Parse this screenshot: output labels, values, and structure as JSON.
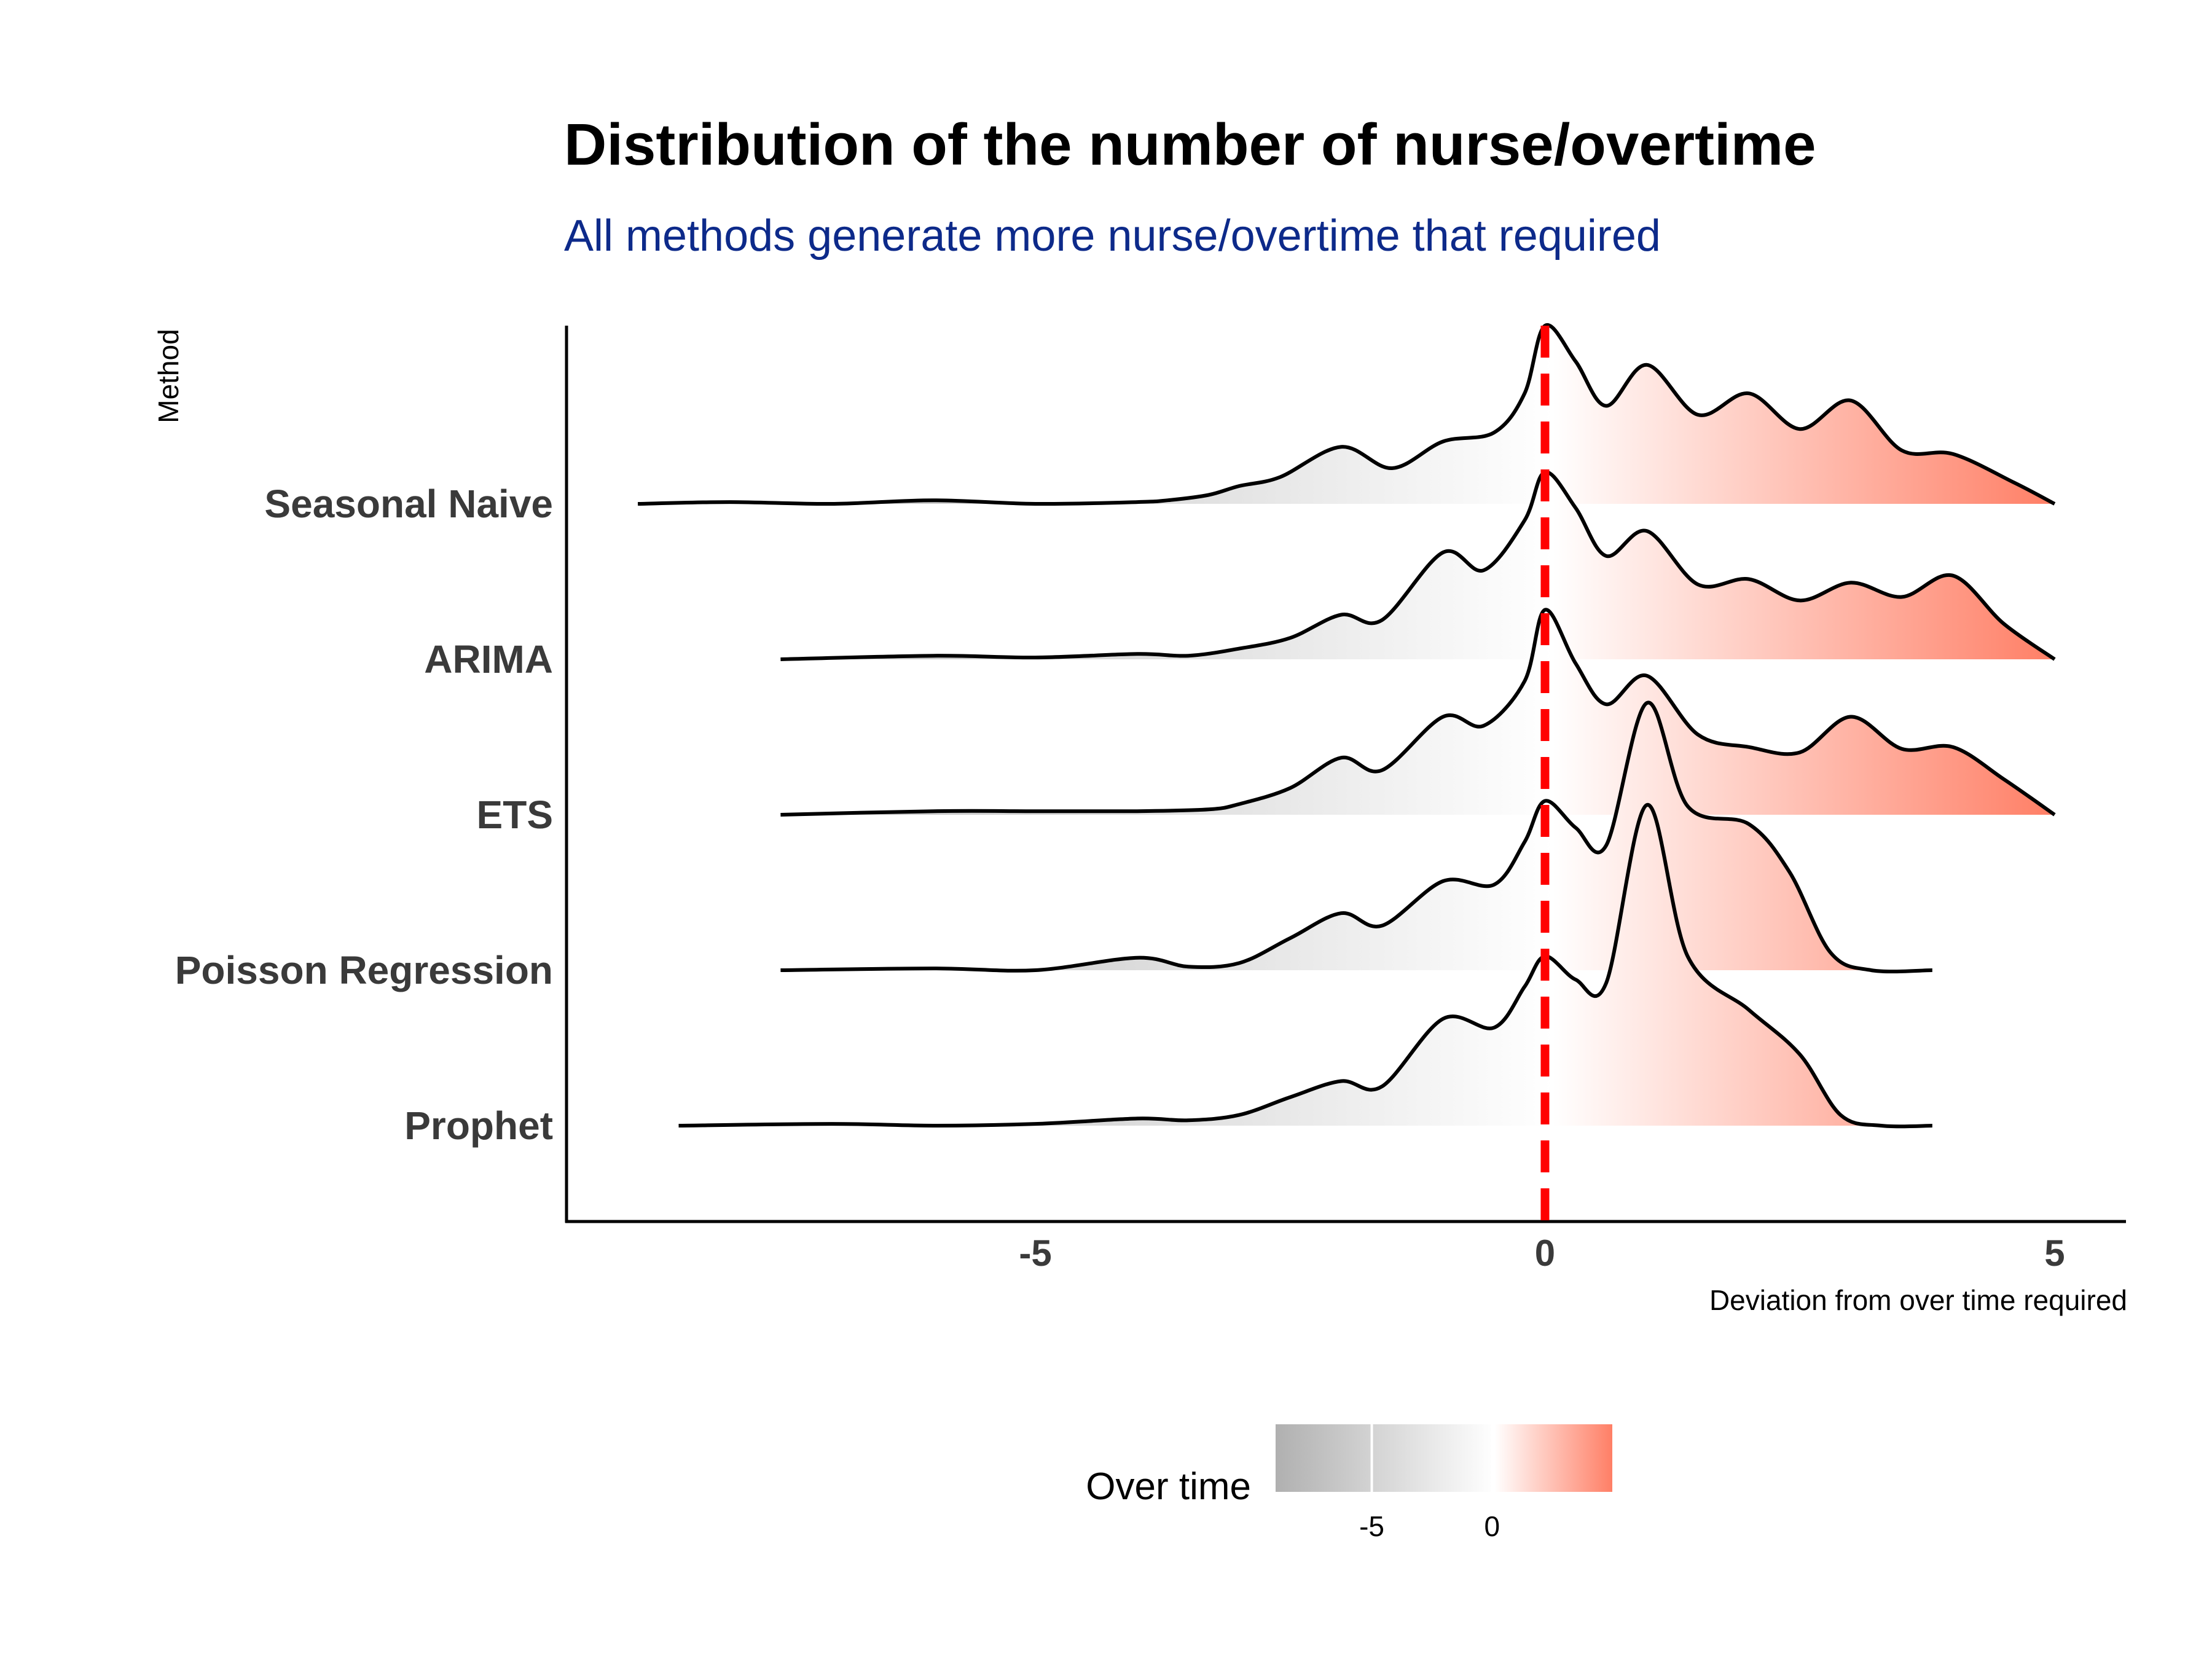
{
  "chart_data": {
    "type": "ridgeline",
    "title": "Distribution of the number of nurse/overtime",
    "subtitle": "All methods generate more nurse/overtime that required",
    "xlabel": "Deviation from over time required",
    "ylabel": "Method",
    "xlim": [
      -9.6,
      5.7
    ],
    "x_ticks": [
      "-5",
      "0",
      "5"
    ],
    "x_tick_values": [
      -5,
      0,
      5
    ],
    "reference_line": {
      "x": 0,
      "style": "dashed",
      "color": "#ff0000"
    },
    "colors": {
      "negative_end": "#b0b0b0",
      "zero": "#ffffff",
      "positive_end": "#ff7f66",
      "outline": "#000000",
      "subtitle": "#0d2a8a"
    },
    "legend": {
      "title": "Over time",
      "placement": "bottom",
      "ticks": [
        "-5",
        "0"
      ],
      "tick_values": [
        -5,
        0
      ],
      "range": [
        -9,
        5
      ]
    },
    "series": [
      {
        "name": "Seasonal Naive",
        "density": [
          [
            -8.9,
            0.0
          ],
          [
            -8,
            0.01
          ],
          [
            -7,
            0.0
          ],
          [
            -6,
            0.02
          ],
          [
            -5,
            0.0
          ],
          [
            -4,
            0.01
          ],
          [
            -3.7,
            0.02
          ],
          [
            -3.3,
            0.05
          ],
          [
            -3,
            0.1
          ],
          [
            -2.6,
            0.15
          ],
          [
            -2,
            0.32
          ],
          [
            -1.5,
            0.2
          ],
          [
            -1,
            0.35
          ],
          [
            -0.5,
            0.4
          ],
          [
            -0.2,
            0.62
          ],
          [
            0,
            1.0
          ],
          [
            0.3,
            0.8
          ],
          [
            0.6,
            0.55
          ],
          [
            1,
            0.78
          ],
          [
            1.5,
            0.5
          ],
          [
            2,
            0.62
          ],
          [
            2.5,
            0.42
          ],
          [
            3,
            0.58
          ],
          [
            3.5,
            0.3
          ],
          [
            4,
            0.28
          ],
          [
            4.6,
            0.12
          ],
          [
            5,
            0.0
          ]
        ]
      },
      {
        "name": "ARIMA",
        "density": [
          [
            -7.5,
            0.0
          ],
          [
            -6,
            0.02
          ],
          [
            -5,
            0.01
          ],
          [
            -4,
            0.03
          ],
          [
            -3.5,
            0.02
          ],
          [
            -3,
            0.06
          ],
          [
            -2.5,
            0.12
          ],
          [
            -2,
            0.25
          ],
          [
            -1.6,
            0.22
          ],
          [
            -1,
            0.6
          ],
          [
            -0.6,
            0.5
          ],
          [
            -0.2,
            0.78
          ],
          [
            0,
            1.05
          ],
          [
            0.3,
            0.85
          ],
          [
            0.6,
            0.58
          ],
          [
            1,
            0.72
          ],
          [
            1.5,
            0.42
          ],
          [
            2,
            0.45
          ],
          [
            2.5,
            0.33
          ],
          [
            3,
            0.43
          ],
          [
            3.5,
            0.35
          ],
          [
            4,
            0.47
          ],
          [
            4.5,
            0.2
          ],
          [
            5,
            0.0
          ]
        ]
      },
      {
        "name": "ETS",
        "density": [
          [
            -7.5,
            0.0
          ],
          [
            -6,
            0.02
          ],
          [
            -5,
            0.02
          ],
          [
            -4,
            0.02
          ],
          [
            -3.3,
            0.03
          ],
          [
            -3,
            0.06
          ],
          [
            -2.5,
            0.15
          ],
          [
            -2,
            0.32
          ],
          [
            -1.6,
            0.25
          ],
          [
            -1,
            0.55
          ],
          [
            -0.6,
            0.5
          ],
          [
            -0.2,
            0.75
          ],
          [
            0,
            1.15
          ],
          [
            0.3,
            0.85
          ],
          [
            0.6,
            0.62
          ],
          [
            1,
            0.78
          ],
          [
            1.5,
            0.45
          ],
          [
            2,
            0.38
          ],
          [
            2.5,
            0.35
          ],
          [
            3,
            0.55
          ],
          [
            3.5,
            0.37
          ],
          [
            4,
            0.38
          ],
          [
            4.5,
            0.2
          ],
          [
            5,
            0.0
          ]
        ]
      },
      {
        "name": "Poisson Regression",
        "density": [
          [
            -7.5,
            0.0
          ],
          [
            -6,
            0.01
          ],
          [
            -5,
            0.0
          ],
          [
            -4,
            0.07
          ],
          [
            -3.5,
            0.02
          ],
          [
            -3,
            0.04
          ],
          [
            -2.5,
            0.18
          ],
          [
            -2,
            0.32
          ],
          [
            -1.6,
            0.25
          ],
          [
            -1,
            0.5
          ],
          [
            -0.5,
            0.48
          ],
          [
            -0.2,
            0.72
          ],
          [
            0,
            0.95
          ],
          [
            0.3,
            0.8
          ],
          [
            0.6,
            0.7
          ],
          [
            1,
            1.5
          ],
          [
            1.4,
            0.92
          ],
          [
            2,
            0.82
          ],
          [
            2.4,
            0.55
          ],
          [
            2.8,
            0.1
          ],
          [
            3.2,
            0.0
          ],
          [
            3.8,
            0.0
          ]
        ]
      },
      {
        "name": "Prophet",
        "density": [
          [
            -8.5,
            0.0
          ],
          [
            -7,
            0.01
          ],
          [
            -6,
            0.0
          ],
          [
            -5,
            0.01
          ],
          [
            -4,
            0.04
          ],
          [
            -3.5,
            0.03
          ],
          [
            -3,
            0.06
          ],
          [
            -2.5,
            0.16
          ],
          [
            -2,
            0.25
          ],
          [
            -1.6,
            0.22
          ],
          [
            -1,
            0.6
          ],
          [
            -0.5,
            0.55
          ],
          [
            -0.2,
            0.78
          ],
          [
            0,
            0.95
          ],
          [
            0.3,
            0.82
          ],
          [
            0.6,
            0.8
          ],
          [
            1,
            1.8
          ],
          [
            1.4,
            0.95
          ],
          [
            2,
            0.65
          ],
          [
            2.5,
            0.4
          ],
          [
            2.9,
            0.06
          ],
          [
            3.3,
            0.0
          ],
          [
            3.8,
            0.0
          ]
        ]
      }
    ]
  }
}
